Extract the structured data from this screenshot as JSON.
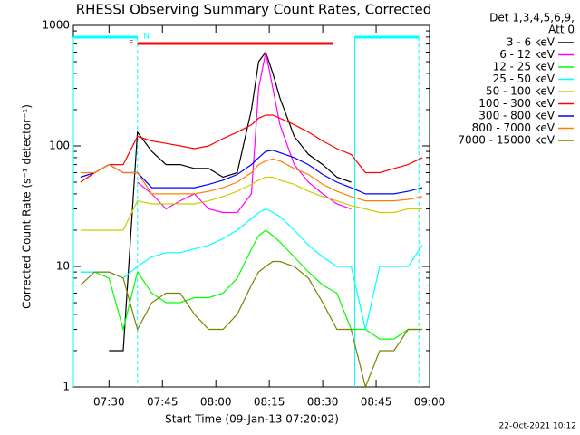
{
  "chart_data": {
    "type": "line",
    "title": "RHESSI Observing Summary Count Rates, Corrected",
    "x_label": "Start Time (09-Jan-13 07:20:02)",
    "y_label": "Corrected Count Rate (s⁻¹ detector⁻¹)",
    "footer": "22-Oct-2021 10:12",
    "legend_title": [
      "Det 1,3,4,5,6,9,",
      "Att 0"
    ],
    "legend_position": "right",
    "log_y": true,
    "xlim": [
      "07:20",
      "09:00"
    ],
    "xticks": [
      "07:30",
      "07:45",
      "08:00",
      "08:15",
      "08:30",
      "08:45",
      "09:00"
    ],
    "ylim": [
      1,
      1000
    ],
    "yticks": [
      1,
      10,
      100,
      1000
    ],
    "flare": {
      "label": "F",
      "start": "07:38",
      "end": "08:33",
      "color": "#ff0000"
    },
    "night": {
      "label": "N",
      "color": "#00ffff",
      "intervals": [
        [
          "07:20",
          "07:38"
        ],
        [
          "08:39",
          "08:57"
        ]
      ]
    },
    "x": [
      "07:22",
      "07:26",
      "07:30",
      "07:34",
      "07:38",
      "07:42",
      "07:46",
      "07:50",
      "07:54",
      "07:58",
      "08:02",
      "08:06",
      "08:10",
      "08:12",
      "08:14",
      "08:16",
      "08:18",
      "08:22",
      "08:26",
      "08:30",
      "08:34",
      "08:38",
      "08:42",
      "08:46",
      "08:50",
      "08:54",
      "08:58"
    ],
    "series": [
      {
        "name": "3 - 6 keV",
        "color": "#000000",
        "values": [
          null,
          null,
          2,
          2,
          130,
          90,
          70,
          70,
          65,
          65,
          55,
          60,
          200,
          500,
          600,
          400,
          250,
          120,
          85,
          70,
          55,
          50,
          null,
          null,
          null,
          null,
          null
        ]
      },
      {
        "name": "6 - 12 keV",
        "color": "#ff00ff",
        "values": [
          null,
          null,
          null,
          null,
          50,
          40,
          30,
          35,
          40,
          30,
          28,
          28,
          40,
          300,
          600,
          300,
          150,
          70,
          50,
          40,
          33,
          30,
          null,
          null,
          null,
          null,
          null
        ]
      },
      {
        "name": "12 - 25 keV",
        "color": "#00ff00",
        "values": [
          9,
          9,
          8,
          3,
          9,
          6,
          5,
          5,
          5.5,
          5.5,
          6,
          8,
          14,
          18,
          20,
          18,
          16,
          12,
          9,
          7,
          6,
          3,
          3,
          2.5,
          2.5,
          3,
          3
        ]
      },
      {
        "name": "25 - 50 keV",
        "color": "#00ffff",
        "values": [
          9,
          9,
          9,
          8,
          10,
          12,
          13,
          13,
          14,
          15,
          17,
          20,
          25,
          28,
          30,
          28,
          26,
          20,
          15,
          12,
          10,
          10,
          3,
          10,
          10,
          10,
          15
        ]
      },
      {
        "name": "50 - 100 keV",
        "color": "#cccc00",
        "values": [
          20,
          20,
          20,
          20,
          35,
          33,
          33,
          33,
          33,
          35,
          38,
          42,
          48,
          52,
          55,
          55,
          52,
          48,
          42,
          38,
          35,
          32,
          30,
          28,
          28,
          30,
          30
        ]
      },
      {
        "name": "100 - 300 keV",
        "color": "#ff0000",
        "values": [
          50,
          60,
          70,
          70,
          120,
          110,
          105,
          100,
          95,
          100,
          115,
          130,
          150,
          170,
          180,
          180,
          170,
          150,
          130,
          110,
          95,
          85,
          60,
          60,
          65,
          70,
          80
        ]
      },
      {
        "name": "300 - 800 keV",
        "color": "#0000ff",
        "values": [
          55,
          60,
          70,
          60,
          60,
          45,
          45,
          45,
          45,
          48,
          52,
          58,
          70,
          80,
          90,
          92,
          88,
          80,
          70,
          58,
          50,
          45,
          40,
          40,
          40,
          42,
          45
        ]
      },
      {
        "name": "800 - 7000 keV",
        "color": "#ff8000",
        "values": [
          60,
          60,
          70,
          60,
          60,
          40,
          40,
          40,
          40,
          42,
          45,
          50,
          60,
          70,
          75,
          78,
          75,
          65,
          58,
          48,
          42,
          38,
          35,
          35,
          35,
          36,
          38
        ]
      },
      {
        "name": "7000 - 15000 keV",
        "color": "#808000",
        "values": [
          7,
          9,
          9,
          8,
          3,
          5,
          6,
          6,
          4,
          3,
          3,
          4,
          7,
          9,
          10,
          11,
          11,
          10,
          8,
          5,
          3,
          3,
          1,
          2,
          2,
          3,
          3
        ]
      }
    ]
  }
}
